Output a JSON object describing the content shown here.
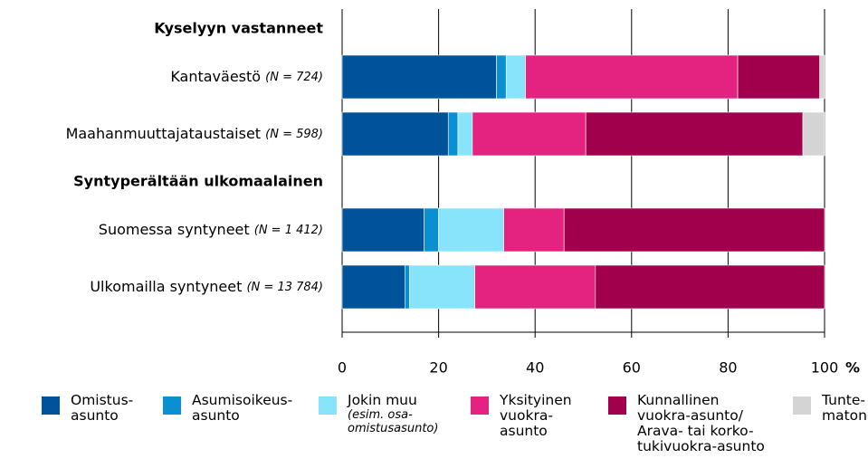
{
  "chart_data": {
    "type": "stacked-barh",
    "groups": [
      {
        "title": "Kyselyyn vastanneet",
        "categories": [
          "Kantaväestö",
          "Maahanmuuttajataustaiset"
        ],
        "notes": [
          "(N = 724)",
          "(N = 598)"
        ]
      },
      {
        "title": "Syntyperältään ulkomaalainen",
        "categories": [
          "Suomessa syntyneet",
          "Ulkomailla syntyneet"
        ],
        "notes": [
          "(N = 1 412)",
          "(N = 13 784)"
        ]
      }
    ],
    "series": [
      {
        "name": "Omistus-\nasunto",
        "color": "#00539b",
        "values": [
          32,
          22,
          17,
          13
        ]
      },
      {
        "name": "Asumisoikeus-\nasunto",
        "color": "#0a8fd0",
        "values": [
          2,
          2,
          3,
          1
        ]
      },
      {
        "name": "Jokin muu",
        "note": "(esim. osa-\nomistusasunto)",
        "color": "#88e4fb",
        "values": [
          4,
          3,
          13.5,
          13.5
        ]
      },
      {
        "name": "Yksityinen\nvuokra-\nasunto",
        "color": "#e3237f",
        "values": [
          44,
          23.5,
          12.5,
          25
        ]
      },
      {
        "name": "Kunnallinen\nvuokra-asunto/\nArava- tai korko-\ntukivuokra-asunto",
        "color": "#a0004c",
        "values": [
          17,
          45,
          54,
          47.5
        ]
      },
      {
        "name": "Tunte-\nmaton",
        "color": "#d4d4d4",
        "values": [
          1,
          4.5,
          0,
          0
        ]
      }
    ],
    "xlabel": "%",
    "xlim": [
      0,
      100
    ],
    "xticks": [
      0,
      20,
      40,
      60,
      80,
      100
    ],
    "grid": true
  }
}
